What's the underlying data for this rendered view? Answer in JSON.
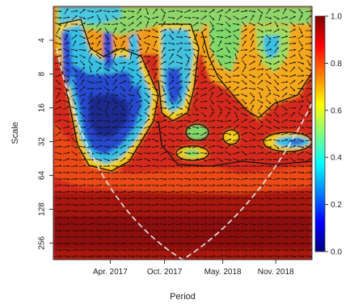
{
  "chart_data": {
    "type": "heatmap",
    "title": "",
    "xlabel": "Period",
    "ylabel": "Scale",
    "x_ticks": [
      "Apr. 2017",
      "Oct. 2017",
      "May. 2018",
      "Nov. 2018"
    ],
    "y_ticks": [
      "4",
      "8",
      "16",
      "32",
      "64",
      "128",
      "256"
    ],
    "y_scale": "log2",
    "ylim": [
      2,
      360
    ],
    "colorbar": {
      "ticks": [
        "1.0",
        "0.8",
        "0.6",
        "0.4",
        "0.2",
        "0.0"
      ],
      "range": [
        0,
        1
      ],
      "colors": [
        "#00007f",
        "#0000ff",
        "#007fff",
        "#00ffff",
        "#7fff7f",
        "#ffff00",
        "#ff7f00",
        "#ff0000",
        "#7f0000"
      ]
    },
    "colors": {
      "background": "#d4291c",
      "dark_red": "#9c0f0f",
      "orange": "#ee5a17",
      "yellow": "#f5d41c",
      "green": "#7fd86a",
      "cyan": "#33c0e6",
      "blue": "#2a4bd6",
      "navy": "#1c2a9c",
      "contour": "#111111",
      "cone": "#e6e6e6",
      "arrow": "#111111"
    },
    "annotations": {
      "cone_of_influence": true,
      "significance_contours": true,
      "phase_arrows": true
    }
  }
}
